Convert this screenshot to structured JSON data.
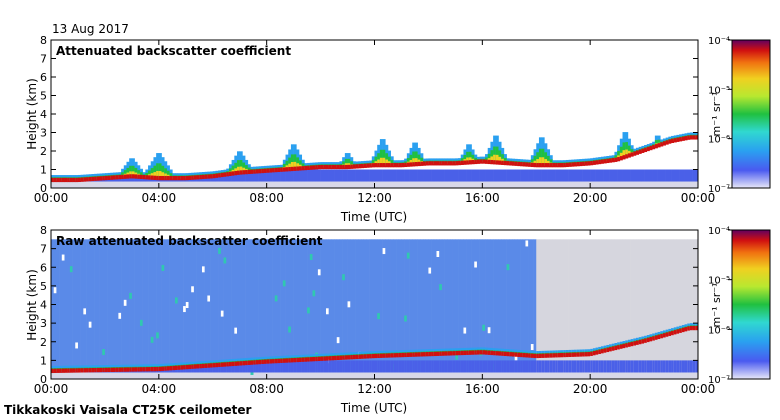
{
  "header": {
    "date": "13 Aug 2017"
  },
  "footer": {
    "site": "Tikkakoski Vaisala CT25K ceilometer"
  },
  "chart_data": [
    {
      "type": "heatmap",
      "title": "Attenuated backscatter coefficient",
      "xlabel": "Time (UTC)",
      "ylabel": "Height (km)",
      "xlim": [
        0,
        24
      ],
      "ylim": [
        0,
        8
      ],
      "x_ticks": [
        0,
        4,
        8,
        12,
        16,
        20,
        24
      ],
      "x_tick_labels": [
        "00:00",
        "04:00",
        "08:00",
        "12:00",
        "16:00",
        "20:00",
        "00:00"
      ],
      "y_ticks": [
        0,
        1,
        2,
        3,
        4,
        5,
        6,
        7,
        8
      ],
      "y_tick_labels": [
        "0",
        "1",
        "2",
        "3",
        "4",
        "5",
        "6",
        "7",
        "8"
      ],
      "colorbar": {
        "label": "m⁻¹ sr⁻¹",
        "scale": "log",
        "range": [
          1e-07,
          0.0001
        ],
        "tick_labels": [
          "10⁻⁷",
          "10⁻⁶",
          "10⁻⁵",
          "10⁻⁴"
        ]
      },
      "cloud_base_km": [
        [
          0,
          0.4
        ],
        [
          1,
          0.4
        ],
        [
          2,
          0.5
        ],
        [
          3,
          0.6
        ],
        [
          4,
          0.5
        ],
        [
          5,
          0.5
        ],
        [
          6,
          0.6
        ],
        [
          7,
          0.8
        ],
        [
          8,
          0.9
        ],
        [
          9,
          1.0
        ],
        [
          10,
          1.1
        ],
        [
          11,
          1.1
        ],
        [
          12,
          1.2
        ],
        [
          13,
          1.2
        ],
        [
          14,
          1.3
        ],
        [
          15,
          1.3
        ],
        [
          16,
          1.4
        ],
        [
          17,
          1.3
        ],
        [
          18,
          1.2
        ],
        [
          19,
          1.2
        ],
        [
          20,
          1.3
        ],
        [
          21,
          1.5
        ],
        [
          22,
          2.0
        ],
        [
          23,
          2.5
        ],
        [
          23.7,
          2.7
        ]
      ],
      "cloud_tops_km": [
        [
          3,
          1.7
        ],
        [
          4,
          2.0
        ],
        [
          7,
          2.1
        ],
        [
          9,
          2.5
        ],
        [
          11,
          2.0
        ],
        [
          12.3,
          2.8
        ],
        [
          13.5,
          2.6
        ],
        [
          15.5,
          2.5
        ],
        [
          16.5,
          3.0
        ],
        [
          18.2,
          2.9
        ],
        [
          21.3,
          3.2
        ],
        [
          22.5,
          3.0
        ],
        [
          23.6,
          2.9
        ]
      ]
    },
    {
      "type": "heatmap",
      "title": "Raw attenuated backscatter coefficient",
      "xlabel": "Time (UTC)",
      "ylabel": "Height (km)",
      "xlim": [
        0,
        24
      ],
      "ylim": [
        0,
        8
      ],
      "x_ticks": [
        0,
        4,
        8,
        12,
        16,
        20,
        24
      ],
      "x_tick_labels": [
        "00:00",
        "04:00",
        "08:00",
        "12:00",
        "16:00",
        "20:00",
        "00:00"
      ],
      "y_ticks": [
        0,
        1,
        2,
        3,
        4,
        5,
        6,
        7,
        8
      ],
      "y_tick_labels": [
        "0",
        "1",
        "2",
        "3",
        "4",
        "5",
        "6",
        "7",
        "8"
      ],
      "colorbar": {
        "label": "m⁻¹ sr⁻¹",
        "scale": "log",
        "range": [
          1e-07,
          0.0001
        ],
        "tick_labels": [
          "10⁻⁷",
          "10⁻⁶",
          "10⁻⁵",
          "10⁻⁴"
        ]
      },
      "noise_top_km": 7.5,
      "cloud_base_km": [
        [
          0,
          0.4
        ],
        [
          4,
          0.5
        ],
        [
          8,
          0.9
        ],
        [
          12,
          1.2
        ],
        [
          16,
          1.4
        ],
        [
          18,
          1.2
        ],
        [
          20,
          1.3
        ],
        [
          22,
          2.0
        ],
        [
          23.7,
          2.7
        ]
      ]
    }
  ]
}
